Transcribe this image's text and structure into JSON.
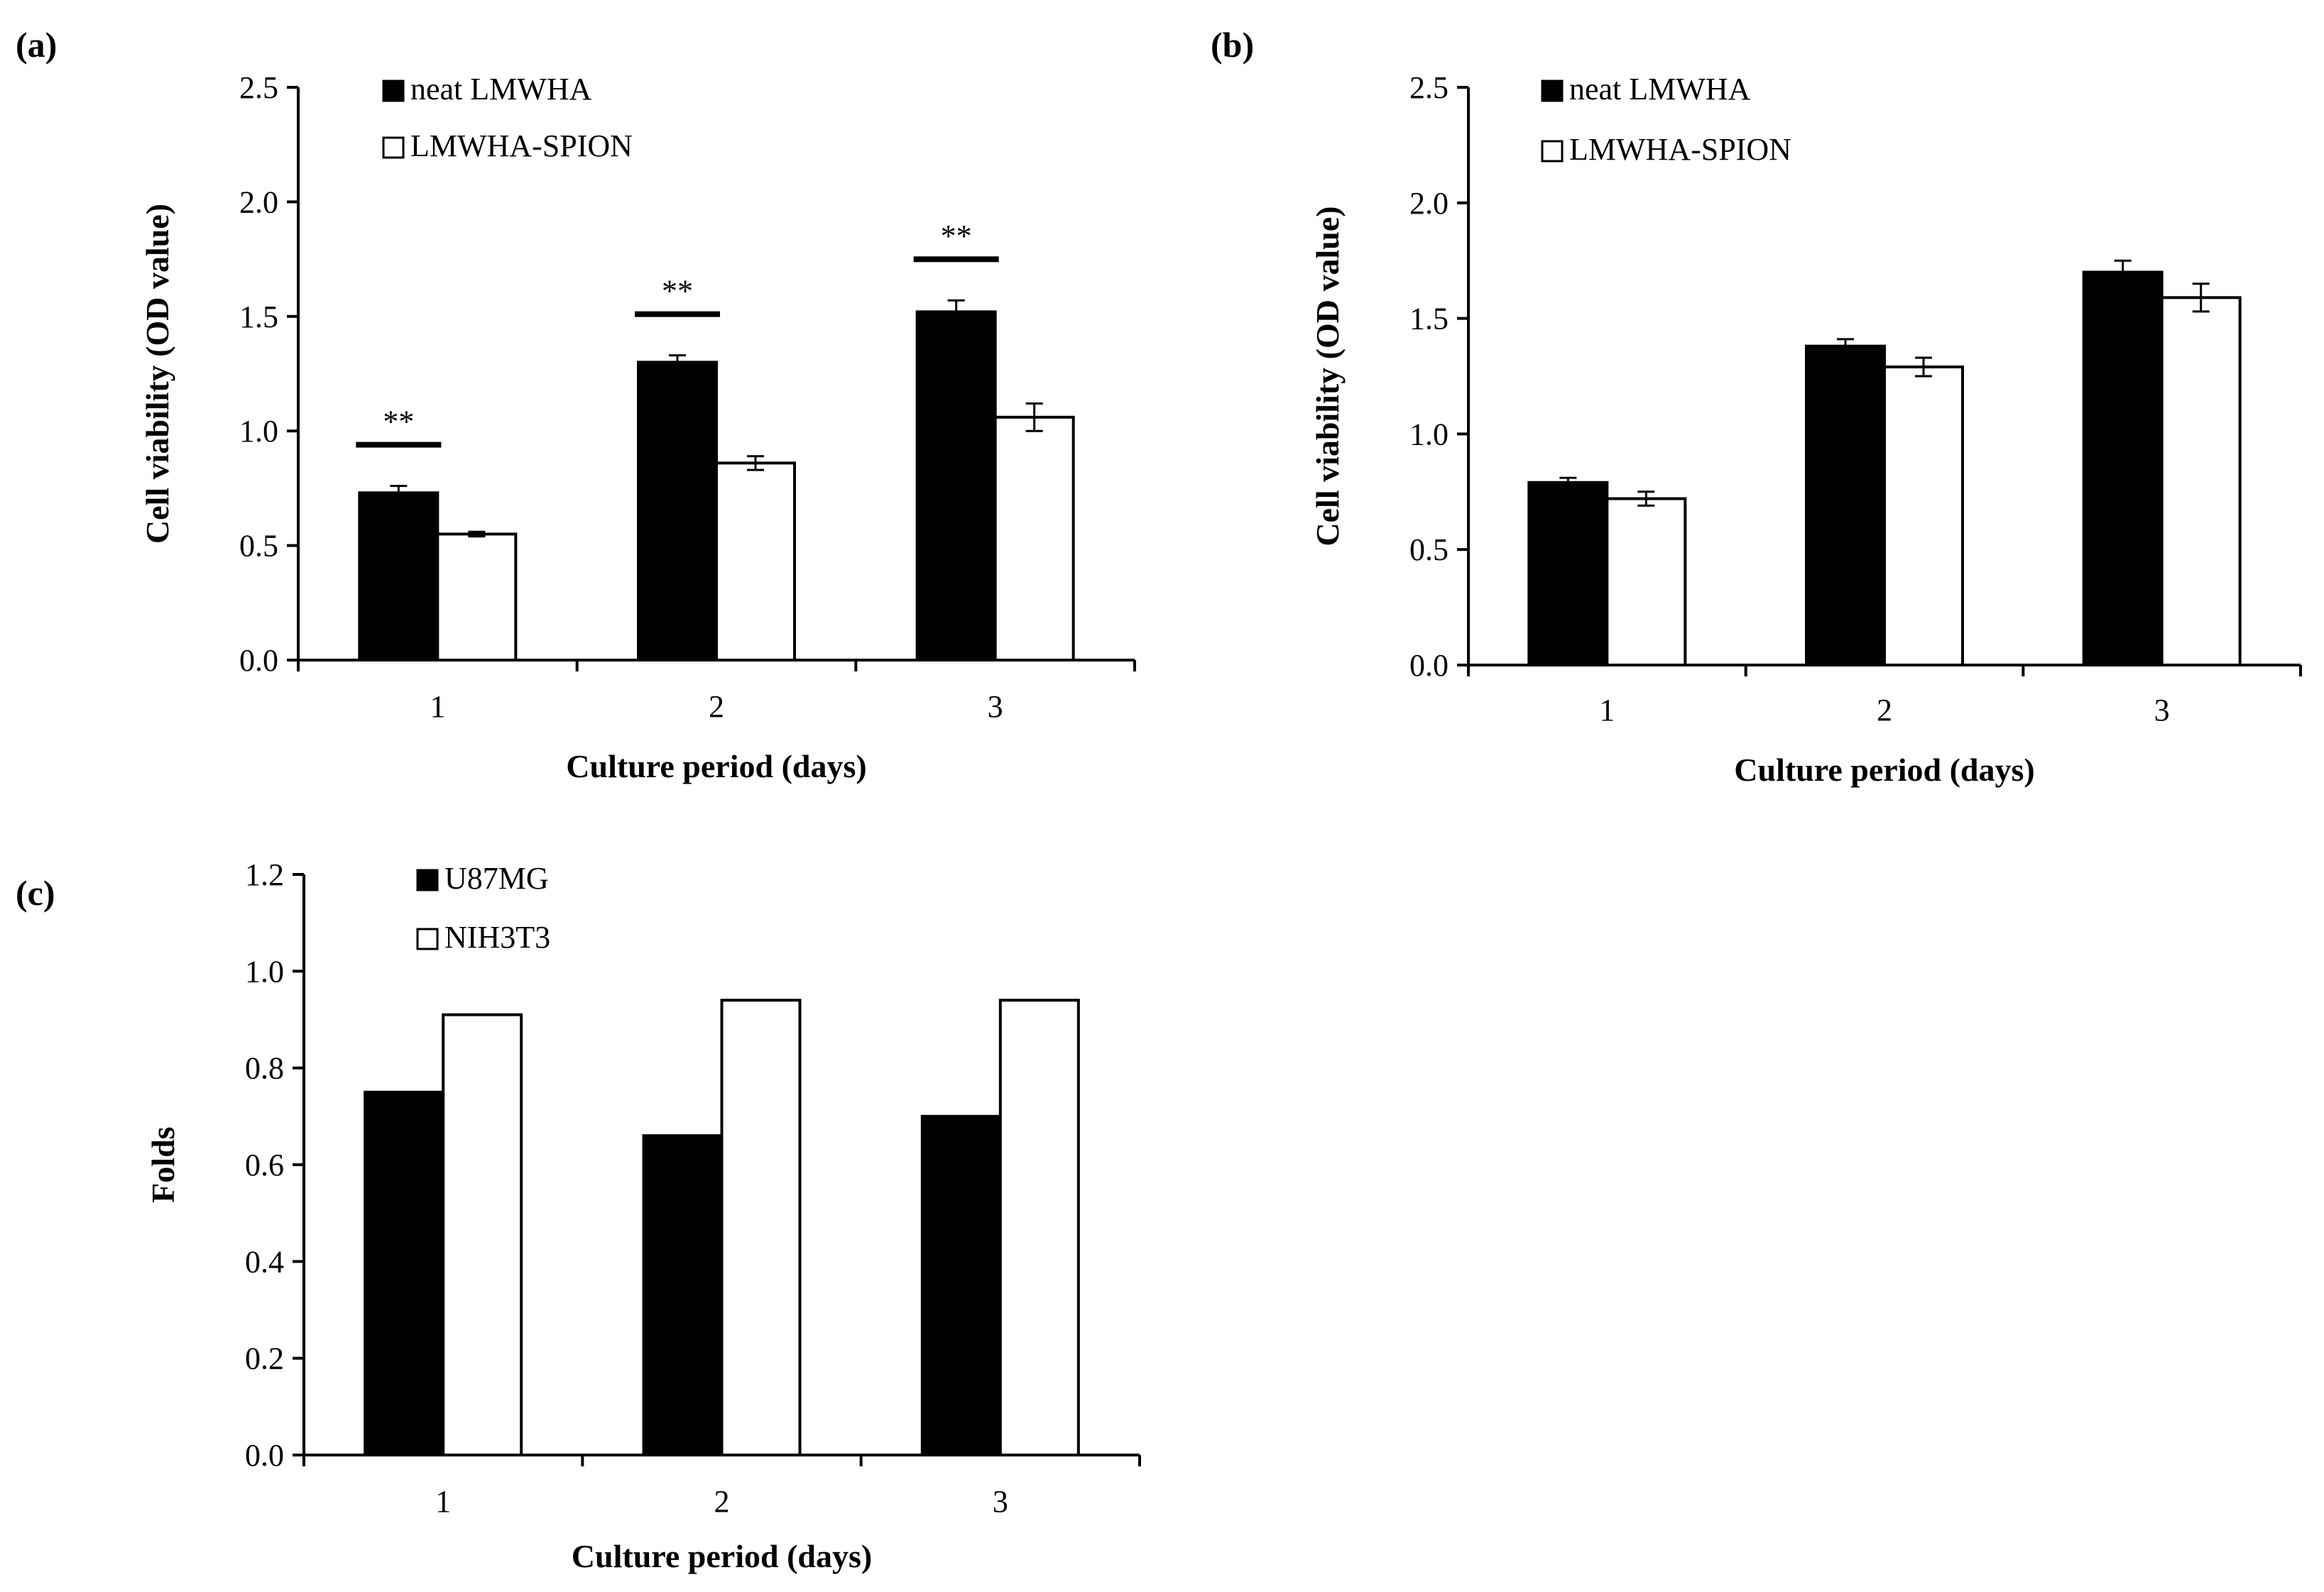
{
  "chart_data": [
    {
      "panel_label": "(a)",
      "type": "bar",
      "categories": [
        "1",
        "2",
        "3"
      ],
      "series": [
        {
          "name": "neat LMWHA",
          "values": [
            0.73,
            1.3,
            1.52
          ],
          "errors": [
            0.03,
            0.03,
            0.05
          ],
          "fill": "#000000"
        },
        {
          "name": "LMWHA-SPION",
          "values": [
            0.55,
            0.86,
            1.06
          ],
          "errors": [
            0.01,
            0.03,
            0.06
          ],
          "fill": "#ffffff"
        }
      ],
      "significance": [
        "**",
        "**",
        "**"
      ],
      "xlabel": "Culture period (days)",
      "ylabel": "Cell viability (OD value)",
      "ylim": [
        0,
        2.5
      ],
      "yticks": [
        "0.0",
        "0.5",
        "1.0",
        "1.5",
        "2.0",
        "2.5"
      ],
      "ytick_values": [
        0,
        0.5,
        1.0,
        1.5,
        2.0,
        2.5
      ]
    },
    {
      "panel_label": "(b)",
      "type": "bar",
      "categories": [
        "1",
        "2",
        "3"
      ],
      "series": [
        {
          "name": "neat LMWHA",
          "values": [
            0.79,
            1.38,
            1.7
          ],
          "errors": [
            0.02,
            0.03,
            0.05
          ],
          "fill": "#000000"
        },
        {
          "name": "LMWHA-SPION",
          "values": [
            0.72,
            1.29,
            1.59
          ],
          "errors": [
            0.03,
            0.04,
            0.06
          ],
          "fill": "#ffffff"
        }
      ],
      "significance": [],
      "xlabel": "Culture period (days)",
      "ylabel": "Cell viability (OD value)",
      "ylim": [
        0,
        2.5
      ],
      "yticks": [
        "0.0",
        "0.5",
        "1.0",
        "1.5",
        "2.0",
        "2.5"
      ],
      "ytick_values": [
        0,
        0.5,
        1.0,
        1.5,
        2.0,
        2.5
      ]
    },
    {
      "panel_label": "(c)",
      "type": "bar",
      "categories": [
        "1",
        "2",
        "3"
      ],
      "series": [
        {
          "name": "U87MG",
          "values": [
            0.75,
            0.66,
            0.7
          ],
          "errors": [],
          "fill": "#000000"
        },
        {
          "name": "NIH3T3",
          "values": [
            0.91,
            0.94,
            0.94
          ],
          "errors": [],
          "fill": "#ffffff"
        }
      ],
      "significance": [],
      "xlabel": "Culture period (days)",
      "ylabel": "Folds",
      "ylim": [
        0,
        1.2
      ],
      "yticks": [
        "0.0",
        "0.2",
        "0.4",
        "0.6",
        "0.8",
        "1.0",
        "1.2"
      ],
      "ytick_values": [
        0,
        0.2,
        0.4,
        0.6,
        0.8,
        1.0,
        1.2
      ]
    }
  ]
}
